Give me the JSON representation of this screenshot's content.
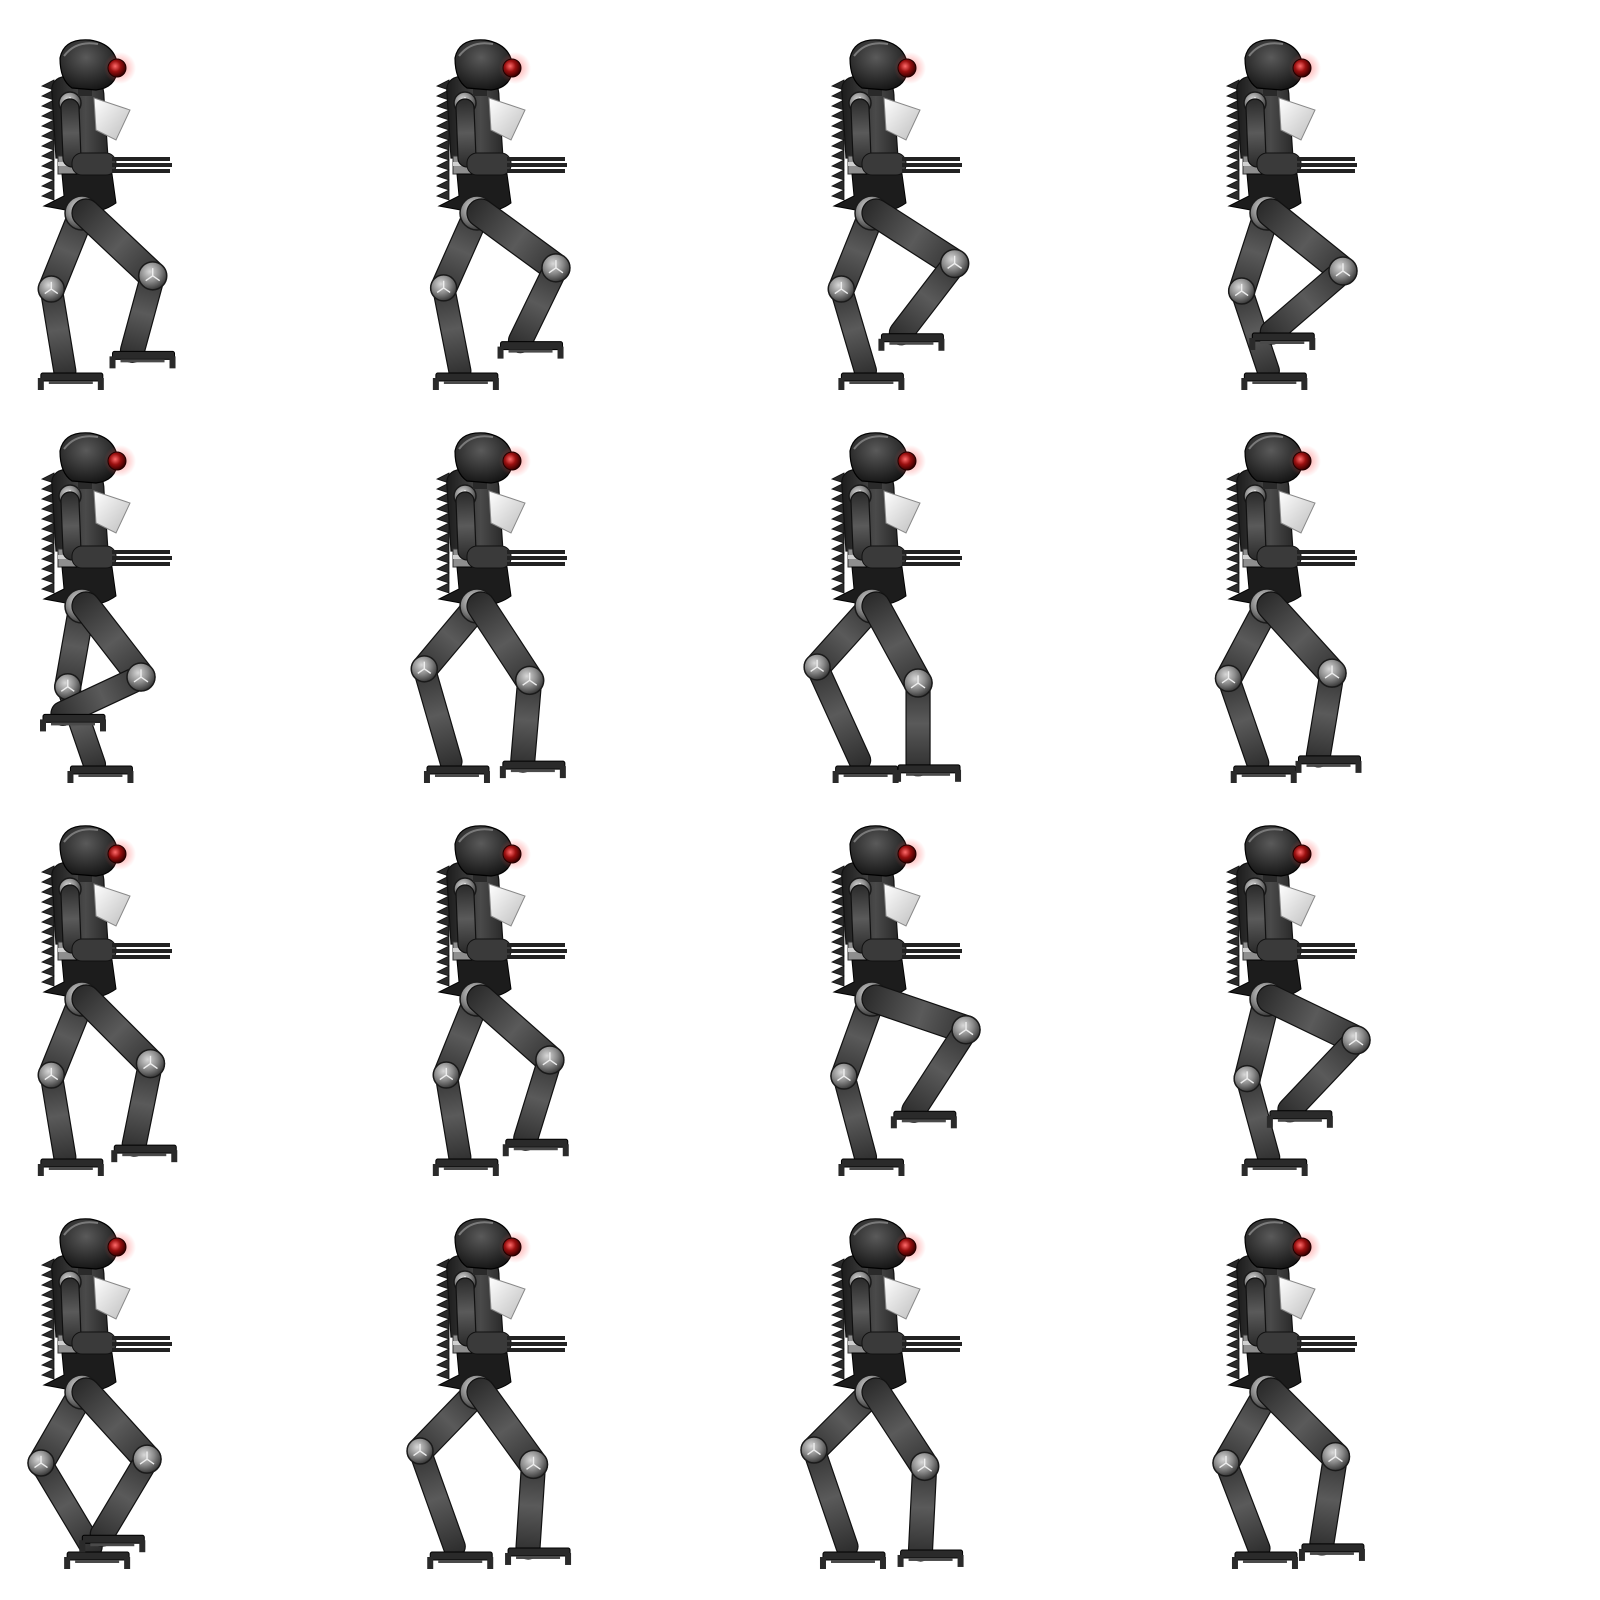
{
  "sprite_sheet": {
    "rows": 4,
    "columns": 4,
    "frame_count": 16,
    "background": "#ffffff",
    "character": "robot-walk-cycle",
    "colors": {
      "body_dark": "#1e1e1e",
      "body_mid": "#3c3c3c",
      "body_light": "#6e6e6e",
      "joint": "#8c8c8c",
      "joint_highlight": "#d2d2d2",
      "chest_plate": "#f2f2f2",
      "eye": "#8a0d0d",
      "eye_glow": "#ff5a5a",
      "foot": "#2a2a2a",
      "strut": "#9a9a9a"
    },
    "frames": [
      {
        "index": 1,
        "pose": {
          "back_hip": 22,
          "back_knee": -32,
          "front_hip": -40,
          "front_knee": 55,
          "front_lift": 0.55
        }
      },
      {
        "index": 2,
        "pose": {
          "back_hip": 24,
          "back_knee": -36,
          "front_hip": -48,
          "front_knee": 75,
          "front_lift": 0.75
        }
      },
      {
        "index": 3,
        "pose": {
          "back_hip": 22,
          "back_knee": -40,
          "front_hip": -52,
          "front_knee": 95,
          "front_lift": 0.85
        }
      },
      {
        "index": 4,
        "pose": {
          "back_hip": 18,
          "back_knee": -38,
          "front_hip": -45,
          "front_knee": 110,
          "front_lift": 0.7
        }
      },
      {
        "index": 5,
        "pose": {
          "back_hip": 10,
          "back_knee": -30,
          "front_hip": -30,
          "front_knee": 120,
          "front_lift": 0.9
        }
      },
      {
        "index": 6,
        "pose": {
          "back_hip": 40,
          "back_knee": -60,
          "front_hip": -25,
          "front_knee": 30,
          "front_lift": 0.1
        }
      },
      {
        "index": 7,
        "pose": {
          "back_hip": 42,
          "back_knee": -75,
          "front_hip": -20,
          "front_knee": 20,
          "front_lift": 0.0
        }
      },
      {
        "index": 8,
        "pose": {
          "back_hip": 28,
          "back_knee": -50,
          "front_hip": -35,
          "front_knee": 45,
          "front_lift": 0.2
        }
      },
      {
        "index": 9,
        "pose": {
          "back_hip": 22,
          "back_knee": -32,
          "front_hip": -38,
          "front_knee": 50,
          "front_lift": 0.3
        }
      },
      {
        "index": 10,
        "pose": {
          "back_hip": 22,
          "back_knee": -32,
          "front_hip": -42,
          "front_knee": 60,
          "front_lift": 0.45
        }
      },
      {
        "index": 11,
        "pose": {
          "back_hip": 20,
          "back_knee": -36,
          "front_hip": -68,
          "front_knee": 110,
          "front_lift": 0.95
        }
      },
      {
        "index": 12,
        "pose": {
          "back_hip": 14,
          "back_knee": -30,
          "front_hip": -60,
          "front_knee": 118,
          "front_lift": 0.9
        }
      },
      {
        "index": 13,
        "pose": {
          "back_hip": 30,
          "back_knee": -70,
          "front_hip": -35,
          "front_knee": 70,
          "front_lift": 0.3
        }
      },
      {
        "index": 14,
        "pose": {
          "back_hip": 44,
          "back_knee": -70,
          "front_hip": -28,
          "front_knee": 32,
          "front_lift": 0.05
        }
      },
      {
        "index": 15,
        "pose": {
          "back_hip": 45,
          "back_knee": -70,
          "front_hip": -25,
          "front_knee": 28,
          "front_lift": 0.0
        }
      },
      {
        "index": 16,
        "pose": {
          "back_hip": 30,
          "back_knee": -55,
          "front_hip": -38,
          "front_knee": 48,
          "front_lift": 0.1
        }
      }
    ]
  }
}
